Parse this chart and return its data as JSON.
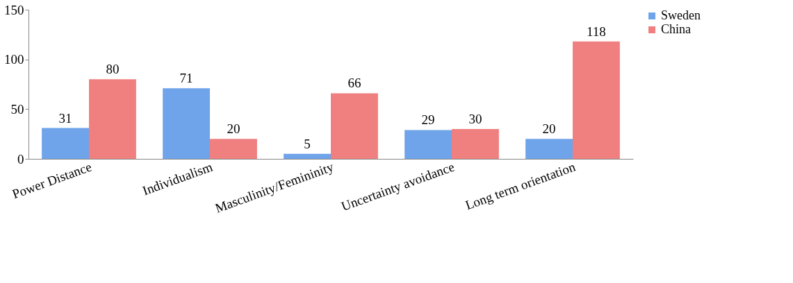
{
  "chart_data": {
    "type": "bar",
    "categories": [
      "Power Distance",
      "Individualism",
      "Masculinity/Femininity",
      "Uncertainty avoidance",
      "Long term orientation"
    ],
    "series": [
      {
        "name": "Sweden",
        "color": "#6fa3ea",
        "values": [
          31,
          71,
          5,
          29,
          20
        ]
      },
      {
        "name": "China",
        "color": "#f07f7f",
        "values": [
          80,
          20,
          66,
          30,
          118
        ]
      }
    ],
    "ylim": [
      0,
      150
    ],
    "yticks": [
      0,
      50,
      100,
      150
    ],
    "grid": false,
    "legend": "right",
    "data_labels": true
  }
}
